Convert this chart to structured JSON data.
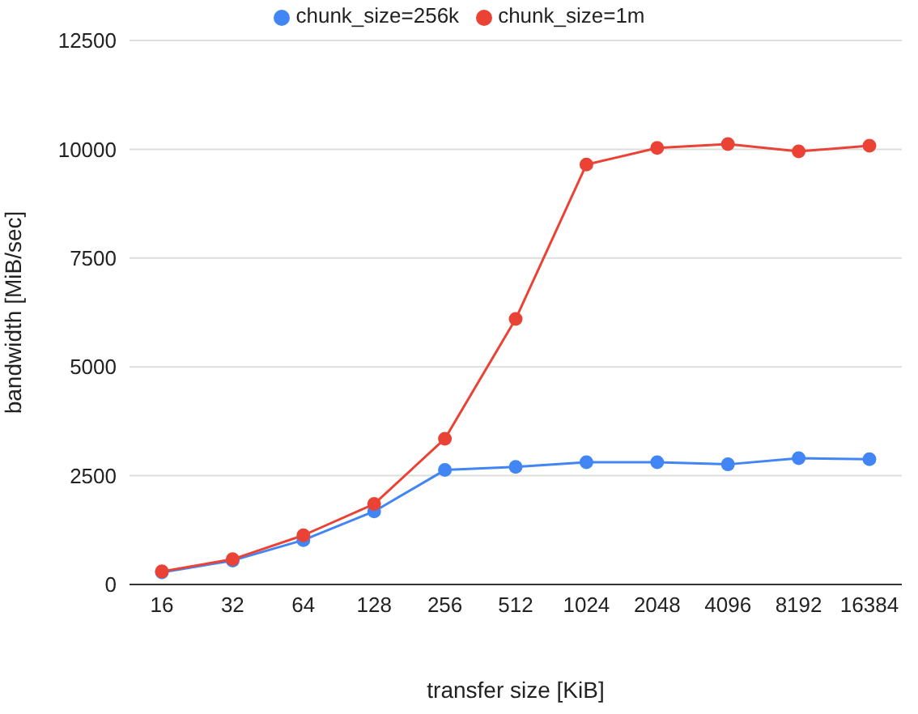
{
  "chart_data": {
    "type": "line",
    "xlabel": "transfer size [KiB]",
    "ylabel": "bandwidth [MiB/sec]",
    "categories": [
      "16",
      "32",
      "64",
      "128",
      "256",
      "512",
      "1024",
      "2048",
      "4096",
      "8192",
      "16384"
    ],
    "series": [
      {
        "name": "chunk_size=256k",
        "color": "#4285f4",
        "values": [
          280,
          550,
          1020,
          1680,
          2630,
          2700,
          2810,
          2810,
          2760,
          2900,
          2880
        ]
      },
      {
        "name": "chunk_size=1m",
        "color": "#ea4335",
        "values": [
          300,
          580,
          1130,
          1850,
          3350,
          6100,
          9650,
          10030,
          10120,
          9950,
          10080
        ]
      }
    ],
    "ylim": [
      0,
      12500
    ],
    "yticks": [
      0,
      2500,
      5000,
      7500,
      10000,
      12500
    ],
    "grid": "y",
    "legend": "top",
    "marker": "circle",
    "line_style": "solid"
  }
}
